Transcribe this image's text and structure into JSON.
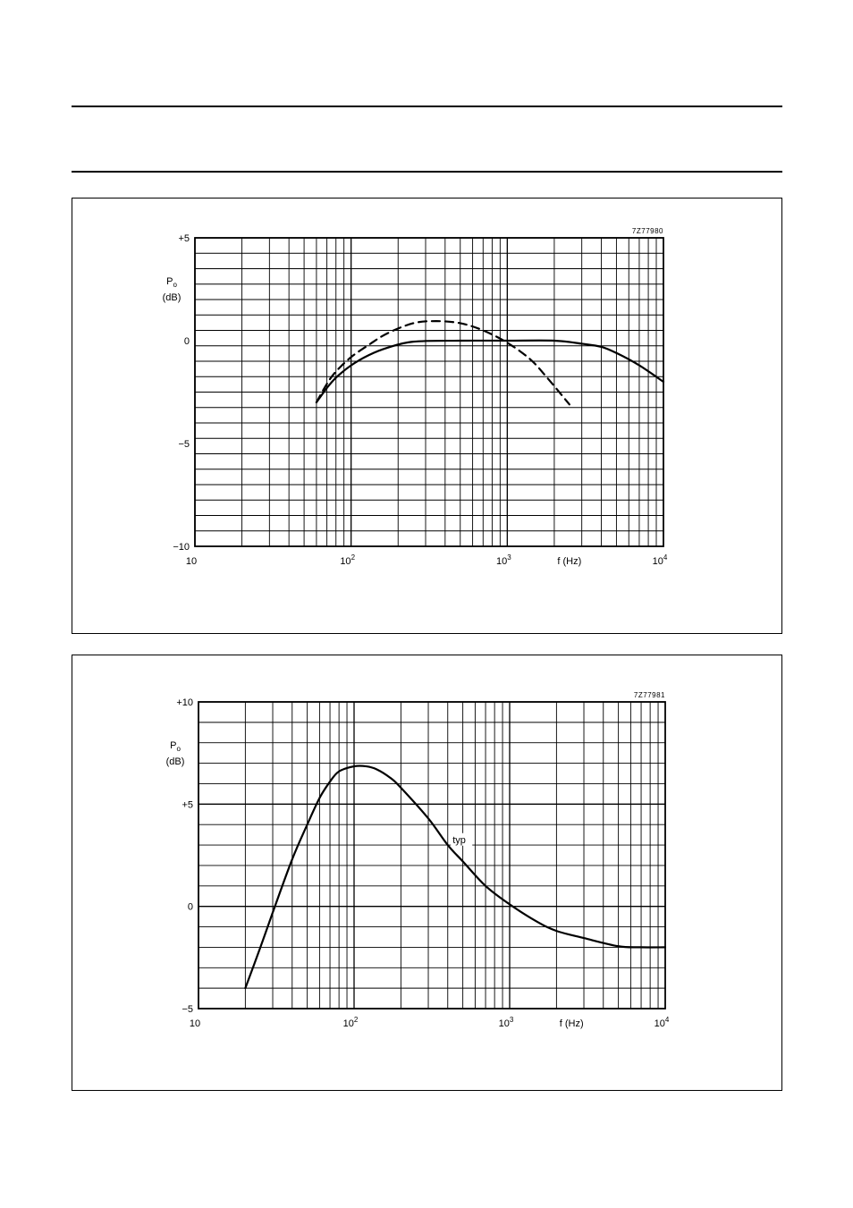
{
  "chart_data": [
    {
      "type": "line",
      "figure_code": "7Z77980",
      "ylabel": "Po",
      "ylabel_sub": "(dB)",
      "xlabel": "f (Hz)",
      "x_scale": "log",
      "xlim": [
        10,
        10000
      ],
      "ylim": [
        -10,
        5
      ],
      "grid": true,
      "x_tick_labels": [
        "10",
        "10",
        "10",
        "10"
      ],
      "x_tick_exponents": [
        "",
        "2",
        "3",
        "4"
      ],
      "y_tick_labels": [
        "+5",
        "0",
        "−5",
        "−10"
      ],
      "y_ticks": [
        5,
        0,
        -5,
        -10
      ],
      "series": [
        {
          "style": "solid",
          "x": [
            60,
            70,
            80,
            100,
            130,
            170,
            250,
            500,
            1000,
            2000,
            3000,
            4000,
            5000,
            7000,
            10000
          ],
          "y": [
            -3.0,
            -2.3,
            -1.8,
            -1.2,
            -0.7,
            -0.35,
            -0.05,
            0.0,
            0.0,
            0.0,
            -0.15,
            -0.3,
            -0.6,
            -1.2,
            -2.0
          ]
        },
        {
          "style": "dashed",
          "x": [
            60,
            70,
            80,
            100,
            130,
            170,
            250,
            350,
            500,
            700,
            1000,
            1400,
            1800,
            2500
          ],
          "y": [
            -3.0,
            -2.1,
            -1.5,
            -0.8,
            -0.2,
            0.35,
            0.85,
            0.95,
            0.85,
            0.5,
            -0.1,
            -0.9,
            -1.8,
            -3.1
          ]
        }
      ]
    },
    {
      "type": "line",
      "figure_code": "7Z77981",
      "ylabel": "Po",
      "ylabel_sub": "(dB)",
      "xlabel": "f (Hz)",
      "x_scale": "log",
      "xlim": [
        10,
        10000
      ],
      "ylim": [
        -5,
        10
      ],
      "grid": true,
      "x_tick_labels": [
        "10",
        "10",
        "10",
        "10"
      ],
      "x_tick_exponents": [
        "",
        "2",
        "3",
        "4"
      ],
      "y_tick_labels": [
        "+10",
        "+5",
        "0",
        "−5"
      ],
      "y_ticks": [
        10,
        5,
        0,
        -5
      ],
      "annotation": "typ",
      "series": [
        {
          "name": "typ",
          "style": "solid",
          "x": [
            20,
            25,
            30,
            40,
            50,
            60,
            70,
            80,
            100,
            120,
            140,
            170,
            200,
            300,
            400,
            500,
            700,
            1000,
            1500,
            2000,
            3000,
            5000,
            7000,
            10000
          ],
          "y": [
            -4.0,
            -2.0,
            -0.3,
            2.3,
            4.0,
            5.3,
            6.1,
            6.6,
            6.85,
            6.85,
            6.7,
            6.3,
            5.8,
            4.3,
            3.0,
            2.2,
            1.0,
            0.1,
            -0.75,
            -1.2,
            -1.55,
            -1.95,
            -2.0,
            -2.0
          ]
        }
      ]
    }
  ]
}
